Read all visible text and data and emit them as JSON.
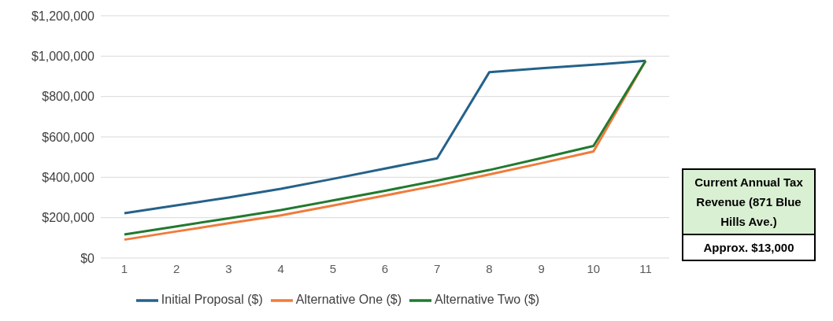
{
  "chart_data": {
    "type": "line",
    "categories": [
      "1",
      "2",
      "3",
      "4",
      "5",
      "6",
      "7",
      "8",
      "9",
      "10",
      "11"
    ],
    "series": [
      {
        "name": "Initial Proposal ($)",
        "color": "#24628a",
        "values": [
          222000,
          261000,
          300000,
          343000,
          392000,
          443000,
          494000,
          920000,
          940000,
          957000,
          977000
        ]
      },
      {
        "name": "Alternative One ($)",
        "color": "#f07b3b",
        "values": [
          91000,
          132000,
          172000,
          211000,
          260000,
          310000,
          360000,
          414000,
          470000,
          528000,
          977000
        ]
      },
      {
        "name": "Alternative Two ($)",
        "color": "#217a2f",
        "values": [
          117000,
          157000,
          197000,
          238000,
          285000,
          333000,
          384000,
          436000,
          495000,
          555000,
          977000
        ]
      }
    ],
    "ylim": [
      0,
      1200000
    ],
    "yticks": [
      {
        "value": 0,
        "label": "$0"
      },
      {
        "value": 200000,
        "label": "$200,000"
      },
      {
        "value": 400000,
        "label": "$400,000"
      },
      {
        "value": 600000,
        "label": "$600,000"
      },
      {
        "value": 800000,
        "label": "$800,000"
      },
      {
        "value": 1000000,
        "label": "$1,000,000"
      },
      {
        "value": 1200000,
        "label": "$1,200,000"
      }
    ],
    "grid": "y",
    "legend": "bottom",
    "marker": "none",
    "line_style": "solid",
    "annotations": [
      "Current Annual Tax Revenue (871 Blue Hills Ave.)",
      "Approx. $13,000"
    ]
  }
}
